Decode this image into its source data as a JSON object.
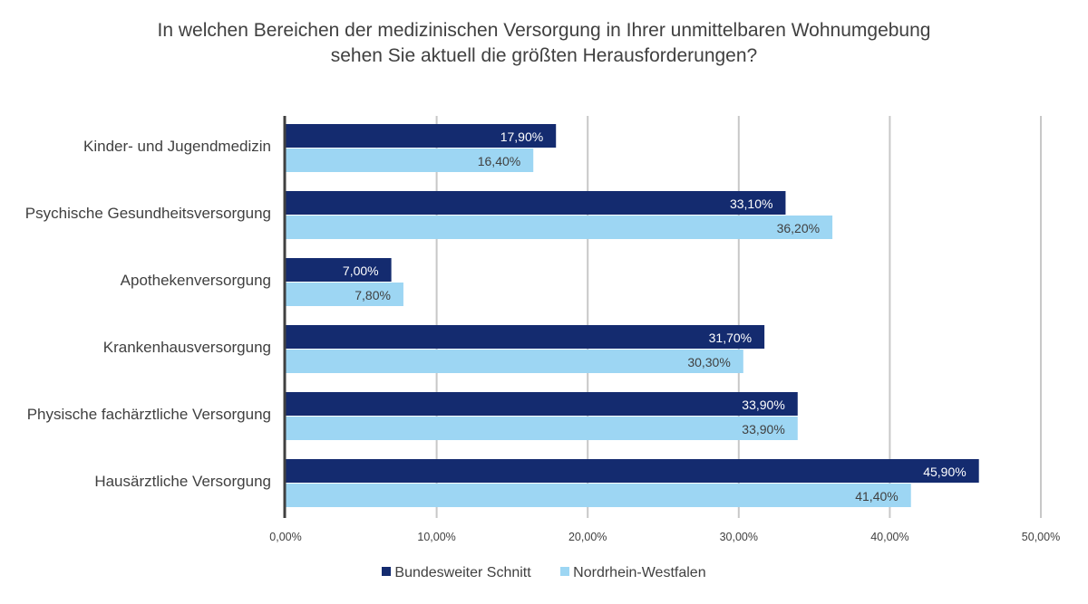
{
  "chart_data": {
    "type": "bar",
    "orientation": "horizontal",
    "title_lines": [
      "In welchen Bereichen der medizinischen Versorgung in Ihrer unmittelbaren Wohnumgebung",
      "sehen Sie aktuell die größten Herausforderungen?"
    ],
    "categories": [
      "Kinder- und Jugendmedizin",
      "Psychische Gesundheitsversorgung",
      "Apothekenversorgung",
      "Krankenhausversorgung",
      "Physische fachärztliche Versorgung",
      "Hausärztliche Versorgung"
    ],
    "series": [
      {
        "name": "Bundesweiter Schnitt",
        "color": "#142b6f",
        "label_color": "#ffffff",
        "values": [
          17.9,
          33.1,
          7.0,
          31.7,
          33.9,
          45.9
        ],
        "labels": [
          "17,90%",
          "33,10%",
          "7,00%",
          "31,70%",
          "33,90%",
          "45,90%"
        ]
      },
      {
        "name": "Nordrhein-Westfalen",
        "color": "#9dd6f3",
        "label_color": "#404040",
        "values": [
          16.4,
          36.2,
          7.8,
          30.3,
          33.9,
          41.4
        ],
        "labels": [
          "16,40%",
          "36,20%",
          "7,80%",
          "30,30%",
          "33,90%",
          "41,40%"
        ]
      }
    ],
    "x_ticks": [
      0,
      10,
      20,
      30,
      40,
      50
    ],
    "x_tick_labels": [
      "0,00%",
      "10,00%",
      "20,00%",
      "30,00%",
      "40,00%",
      "50,00%"
    ],
    "xlim": [
      0,
      50
    ],
    "grid": true,
    "legend_position": "bottom"
  }
}
